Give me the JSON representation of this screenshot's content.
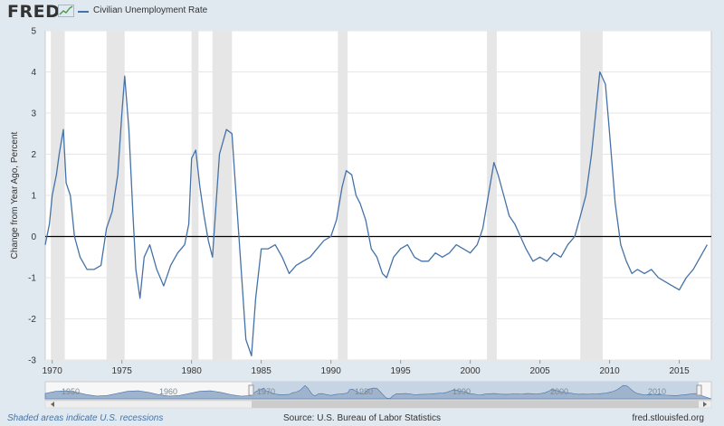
{
  "header": {
    "logo_text": "FRED",
    "logo_icon": "line-chart-icon",
    "legend_label": "Civilian Unemployment Rate"
  },
  "colors": {
    "series": "#4572a7",
    "recession": "#e6e6e6",
    "background": "#e1e9f0",
    "zero_line": "#000000"
  },
  "footer": {
    "note": "Shaded areas indicate U.S. recessions",
    "source": "Source: U.S. Bureau of Labor Statistics",
    "site": "fred.stlouisfed.org"
  },
  "navigator": {
    "year_labels": [
      "1950",
      "1960",
      "1970",
      "1980",
      "1990",
      "2000",
      "2010"
    ]
  },
  "chart_data": {
    "type": "line",
    "title": "",
    "xlabel": "",
    "ylabel": "Change from Year Ago, Percent",
    "xlim": [
      1969.5,
      2017.3
    ],
    "ylim": [
      -3,
      5
    ],
    "y_ticks": [
      -3,
      -2,
      -1,
      0,
      1,
      2,
      3,
      4,
      5
    ],
    "x_ticks": [
      1970,
      1975,
      1980,
      1985,
      1990,
      1995,
      2000,
      2005,
      2010,
      2015
    ],
    "grid": "horizontal",
    "legend_position": "top-left",
    "recessions": [
      [
        1969.9,
        1970.9
      ],
      [
        1973.9,
        1975.2
      ],
      [
        1980.0,
        1980.5
      ],
      [
        1981.5,
        1982.9
      ],
      [
        1990.5,
        1991.2
      ],
      [
        2001.2,
        2001.9
      ],
      [
        2007.9,
        2009.5
      ]
    ],
    "series": [
      {
        "name": "Civilian Unemployment Rate",
        "x": [
          1969.5,
          1969.8,
          1970.0,
          1970.3,
          1970.5,
          1970.8,
          1971.0,
          1971.3,
          1971.6,
          1972.0,
          1972.5,
          1973.0,
          1973.5,
          1973.9,
          1974.3,
          1974.7,
          1975.0,
          1975.2,
          1975.5,
          1975.8,
          1976.0,
          1976.3,
          1976.6,
          1977.0,
          1977.5,
          1978.0,
          1978.5,
          1979.0,
          1979.5,
          1979.8,
          1980.0,
          1980.3,
          1980.6,
          1980.9,
          1981.2,
          1981.5,
          1981.8,
          1982.0,
          1982.5,
          1982.9,
          1983.2,
          1983.6,
          1983.9,
          1984.3,
          1984.6,
          1985.0,
          1985.5,
          1986.0,
          1986.5,
          1987.0,
          1987.5,
          1988.0,
          1988.5,
          1989.0,
          1989.5,
          1990.0,
          1990.4,
          1990.8,
          1991.1,
          1991.5,
          1991.8,
          1992.1,
          1992.5,
          1992.9,
          1993.3,
          1993.7,
          1994.0,
          1994.5,
          1995.0,
          1995.5,
          1996.0,
          1996.5,
          1997.0,
          1997.5,
          1998.0,
          1998.5,
          1999.0,
          1999.5,
          2000.0,
          2000.5,
          2000.9,
          2001.3,
          2001.7,
          2002.0,
          2002.4,
          2002.8,
          2003.2,
          2003.6,
          2004.0,
          2004.5,
          2005.0,
          2005.5,
          2006.0,
          2006.5,
          2007.0,
          2007.5,
          2007.9,
          2008.3,
          2008.7,
          2009.0,
          2009.3,
          2009.7,
          2010.0,
          2010.4,
          2010.8,
          2011.2,
          2011.6,
          2012.0,
          2012.5,
          2013.0,
          2013.5,
          2014.0,
          2014.5,
          2015.0,
          2015.5,
          2016.0,
          2016.5,
          2017.0
        ],
        "values": [
          -0.2,
          0.3,
          1.0,
          1.5,
          2.0,
          2.6,
          1.3,
          1.0,
          0.0,
          -0.5,
          -0.8,
          -0.8,
          -0.7,
          0.2,
          0.6,
          1.5,
          3.0,
          3.9,
          2.6,
          0.5,
          -0.8,
          -1.5,
          -0.5,
          -0.2,
          -0.8,
          -1.2,
          -0.7,
          -0.4,
          -0.2,
          0.3,
          1.9,
          2.1,
          1.2,
          0.5,
          -0.1,
          -0.5,
          1.0,
          2.0,
          2.6,
          2.5,
          1.0,
          -1.0,
          -2.5,
          -2.9,
          -1.5,
          -0.3,
          -0.3,
          -0.2,
          -0.5,
          -0.9,
          -0.7,
          -0.6,
          -0.5,
          -0.3,
          -0.1,
          0.0,
          0.4,
          1.2,
          1.6,
          1.5,
          1.0,
          0.8,
          0.4,
          -0.3,
          -0.5,
          -0.9,
          -1.0,
          -0.5,
          -0.3,
          -0.2,
          -0.5,
          -0.6,
          -0.6,
          -0.4,
          -0.5,
          -0.4,
          -0.2,
          -0.3,
          -0.4,
          -0.2,
          0.2,
          1.0,
          1.8,
          1.5,
          1.0,
          0.5,
          0.3,
          0.0,
          -0.3,
          -0.6,
          -0.5,
          -0.6,
          -0.4,
          -0.5,
          -0.2,
          0.0,
          0.5,
          1.0,
          2.0,
          3.0,
          4.0,
          3.7,
          2.5,
          0.8,
          -0.2,
          -0.6,
          -0.9,
          -0.8,
          -0.9,
          -0.8,
          -1.0,
          -1.1,
          -1.2,
          -1.3,
          -1.0,
          -0.8,
          -0.5,
          -0.2
        ]
      }
    ]
  }
}
